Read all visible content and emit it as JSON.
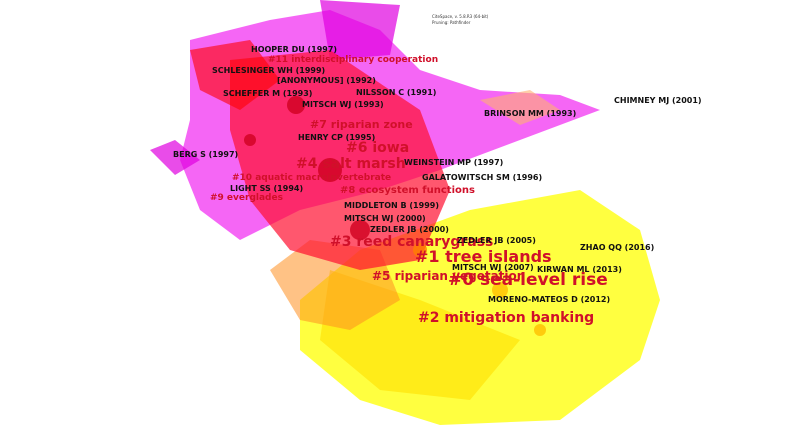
{
  "info": [
    "CiteSpace, v. 5.8.R3 (64-bit)",
    "Pruning: Pathfinder"
  ],
  "clusters": [
    "#0 sea-level rise",
    "#1 tree islands",
    "#2 mitigation banking",
    "#3 reed canarygrass",
    "#4 salt marsh",
    "#5 riparian vegetation",
    "#6 iowa",
    "#7 riparian zone",
    "#8 ecosystem functions",
    "#9 everglades",
    "#10 aquatic macroinvertebrate",
    "#11 interdisciplinary cooperation"
  ],
  "references": [
    "HOOPER DU (1997)",
    "SCHLESINGER WH (1999)",
    "[ANONYMOUS] (1992)",
    "SCHEFFER M (1993)",
    "NILSSON C (1991)",
    "MITSCH WJ (1993)",
    "CHIMNEY MJ (2001)",
    "BRINSON MM (1993)",
    "HENRY CP (1995)",
    "BERG S (1997)",
    "WEINSTEIN MP (1997)",
    "LIGHT SS (1994)",
    "GALATOWITSCH SM (1996)",
    "MIDDLETON B (1999)",
    "MITSCH WJ (2000)",
    "ZEDLER JB (2000)",
    "ZEDLER JB (2005)",
    "ZHAO QQ (2016)",
    "MITSCH WJ (2007)",
    "KIRWAN ML (2013)",
    "MORENO-MATEOS D (2012)"
  ]
}
